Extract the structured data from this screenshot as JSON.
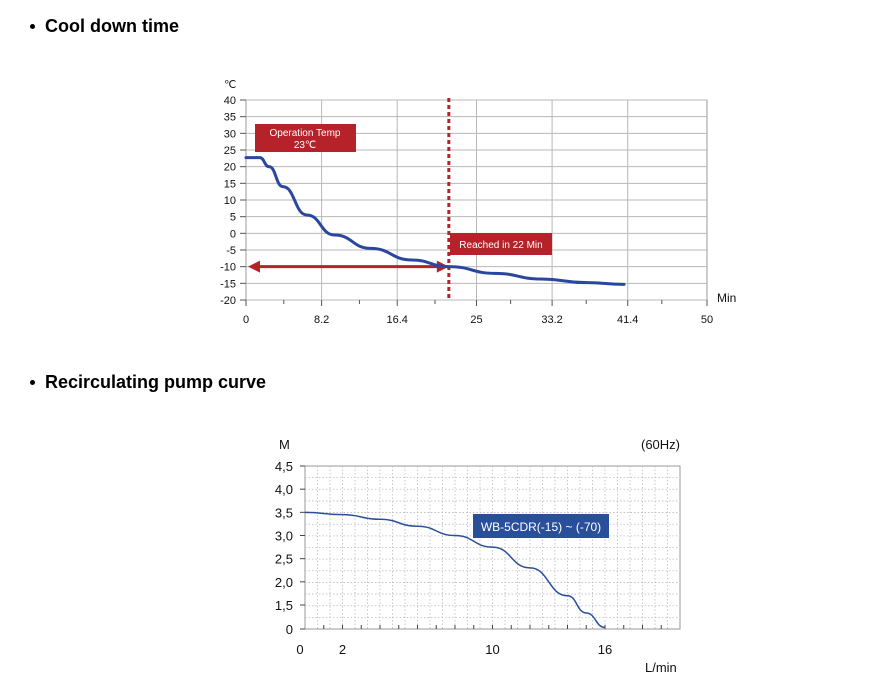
{
  "sections": {
    "cool_down_title": "Cool down time",
    "pump_curve_title": "Recirculating pump curve"
  },
  "chart_data": [
    {
      "type": "line",
      "title": "",
      "ylabel": "℃",
      "xlabel": "Min",
      "xlim": [
        0,
        50
      ],
      "ylim": [
        -20,
        40
      ],
      "x_ticks": [
        "0",
        "8.2",
        "16.4",
        "25",
        "33.2",
        "41.4",
        "50"
      ],
      "y_ticks": [
        "40",
        "35",
        "30",
        "25",
        "20",
        "15",
        "10",
        "5",
        "0",
        "-5",
        "-10",
        "-15",
        "-20"
      ],
      "grid": true,
      "line_color": "#2a47a0",
      "annotation_color": "#b5222a",
      "series": [
        {
          "x": [
            0,
            1.5,
            2.5,
            4,
            6.6,
            9.6,
            13.5,
            18,
            22,
            27,
            32,
            37,
            41
          ],
          "y": [
            22.7,
            22.7,
            20,
            14,
            5.5,
            -0.5,
            -4.5,
            -8,
            -10,
            -12,
            -13.7,
            -14.8,
            -15.3
          ]
        }
      ],
      "annotations": {
        "operation_temp": "Operation Temp",
        "operation_temp_value": "23℃",
        "reached": "Reached in 22 Min",
        "reached_x": 22,
        "reached_y": -10
      }
    },
    {
      "type": "line",
      "title": "",
      "ylabel": "M",
      "xlabel": "L/min",
      "corner_label": "(60Hz)",
      "xlim": [
        0,
        20
      ],
      "ylim": [
        0,
        4.5
      ],
      "x_ticks": [
        "0",
        "2",
        "10",
        "16"
      ],
      "y_ticks": [
        "4.5",
        "4.0",
        "3.5",
        "3.0",
        "2.5",
        "2.0",
        "1.5",
        "0"
      ],
      "grid": true,
      "line_color": "#2a4f9a",
      "series": [
        {
          "name": "WB-5CDR(-15) ~ (-70)",
          "x": [
            0,
            2,
            4,
            6,
            8,
            10,
            12,
            14,
            15,
            16
          ],
          "y": [
            3.5,
            3.45,
            3.35,
            3.2,
            3.0,
            2.75,
            2.3,
            1.7,
            1.0,
            0.1
          ]
        }
      ]
    }
  ]
}
